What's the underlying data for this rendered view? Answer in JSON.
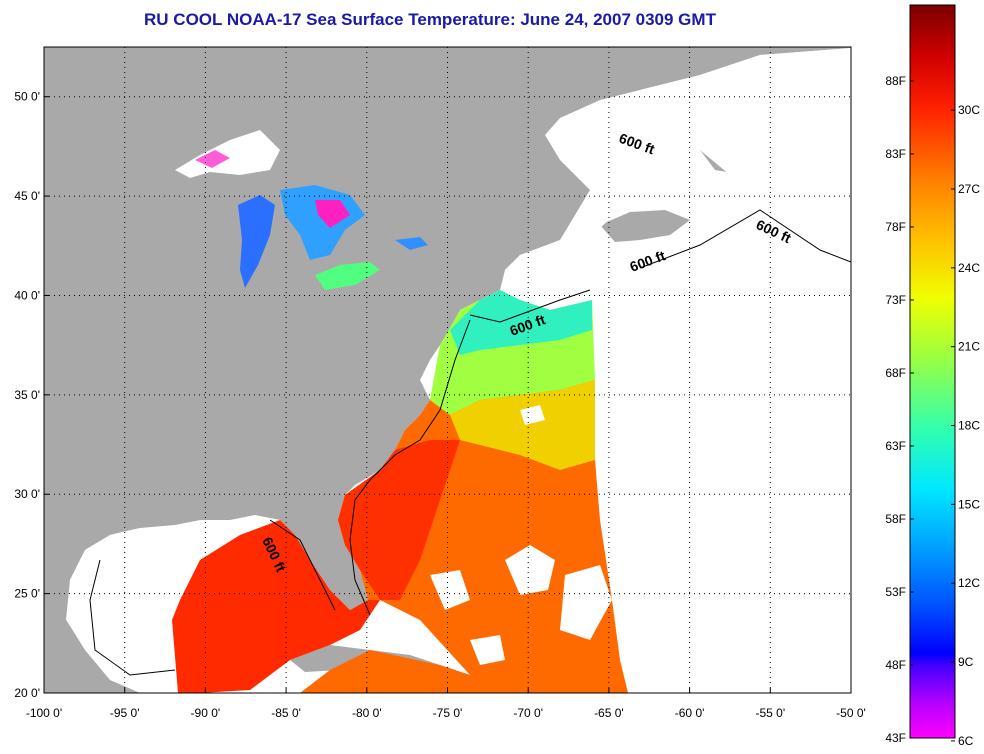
{
  "title": "RU COOL  NOAA-17  Sea Surface Temperature:  June 24, 2007 0309 GMT",
  "map": {
    "lon_range": [
      -100,
      -50
    ],
    "lat_range": [
      20,
      52.5
    ],
    "lon_ticks": [
      "-100 0'",
      "-95 0'",
      "-90 0'",
      "-85 0'",
      "-80 0'",
      "-75 0'",
      "-70 0'",
      "-65 0'",
      "-60 0'",
      "-55 0'",
      "-50 0'"
    ],
    "lat_ticks": [
      "20 0'",
      "25 0'",
      "30 0'",
      "35 0'",
      "40 0'",
      "45 0'",
      "50 0'"
    ],
    "grid": "dotted",
    "contour_label": "600 ft",
    "land_color": "#a9a9a9",
    "no_data_color": "#ffffff"
  },
  "colorbar": {
    "fahrenheit_labels": [
      "88F",
      "83F",
      "78F",
      "73F",
      "68F",
      "63F",
      "58F",
      "53F",
      "48F",
      "43F"
    ],
    "celsius_labels": [
      "30C",
      "27C",
      "24C",
      "21C",
      "18C",
      "15C",
      "12C",
      "9C",
      "6C"
    ],
    "colors_top_to_bottom": [
      "#7a0000",
      "#ff0000",
      "#ff5a00",
      "#ffa000",
      "#ffe000",
      "#b4ff3c",
      "#3cffb0",
      "#00e0ff",
      "#00a0ff",
      "#0040ff",
      "#0000ff",
      "#8000ff",
      "#ff00ff"
    ]
  }
}
